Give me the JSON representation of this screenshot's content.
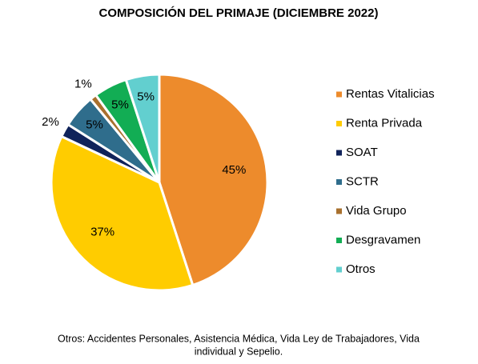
{
  "chart_data": {
    "type": "pie",
    "title": "COMPOSICIÓN DEL PRIMAJE (DICIEMBRE 2022)",
    "categories": [
      "Rentas Vitalicias",
      "Renta Privada",
      "SOAT",
      "SCTR",
      "Vida Grupo",
      "Desgravamen",
      "Otros"
    ],
    "values": [
      45,
      37,
      2,
      5,
      1,
      5,
      5
    ],
    "value_labels": [
      "45%",
      "37%",
      "2%",
      "5%",
      "1%",
      "5%",
      "5%"
    ],
    "colors": [
      "#ED8B2C",
      "#FFCC00",
      "#10235A",
      "#2F6D8C",
      "#A8702E",
      "#12AD54",
      "#62CFCF"
    ],
    "legend": "right",
    "footnote": [
      "Otros: Accidentes Personales, Asistencia Médica, Vida Ley de Trabajadores, Vida",
      "individual y Sepelio."
    ]
  }
}
